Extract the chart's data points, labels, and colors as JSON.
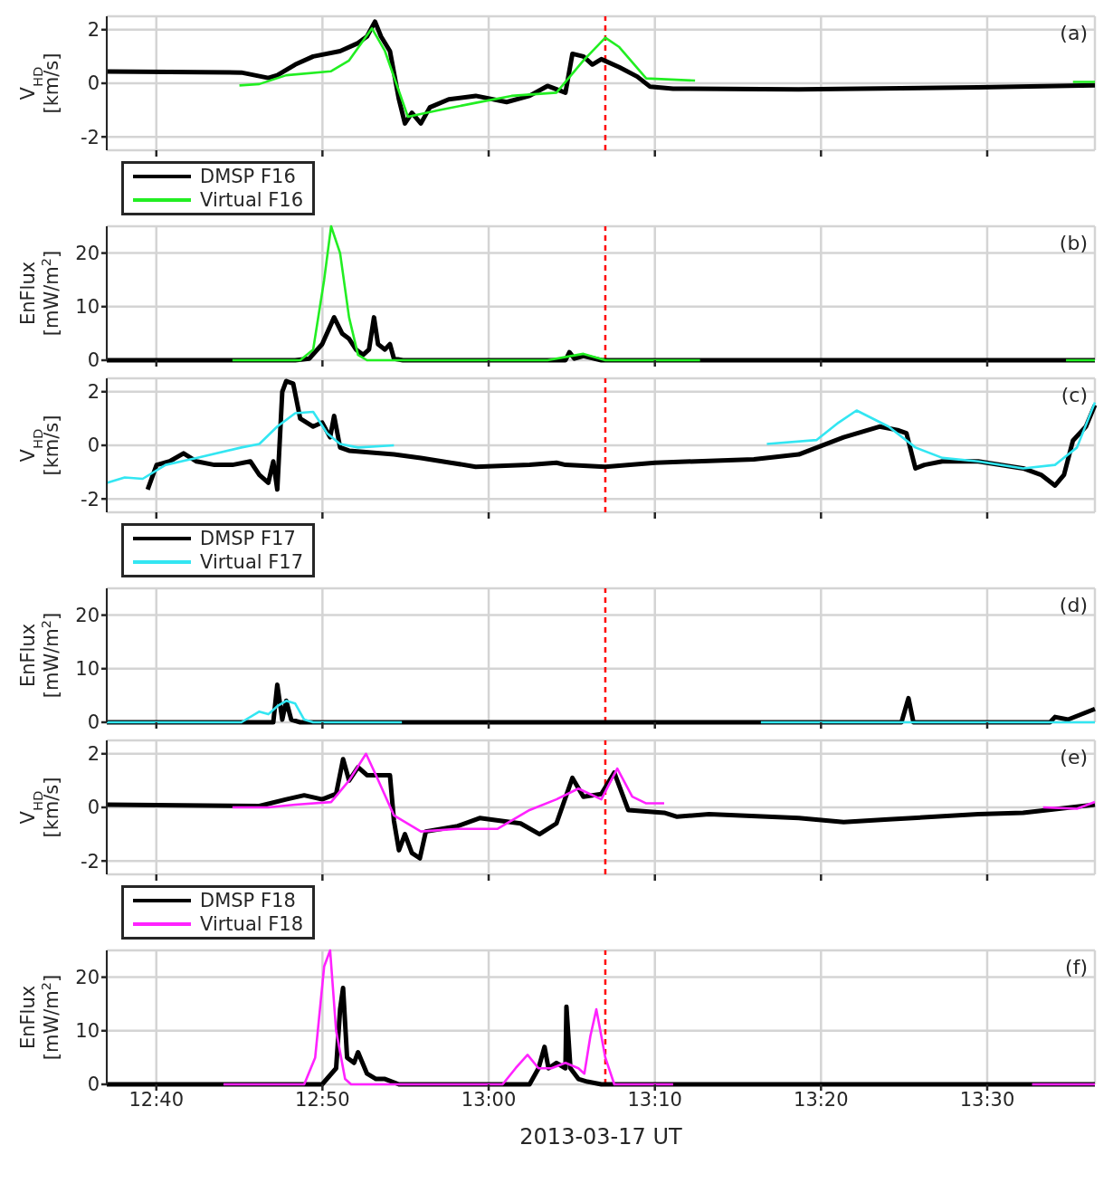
{
  "chart_data": [
    {
      "type": "line",
      "ylabel": "V$_{HD}$ [km/s]",
      "xlim": [
        12.617,
        13.608
      ],
      "xticks": [
        {
          "value": 12.6667,
          "label": null
        },
        {
          "value": 12.8333,
          "label": null
        },
        {
          "value": 13,
          "label": null
        },
        {
          "value": 13.1667,
          "label": null
        },
        {
          "value": 13.3333,
          "label": null
        },
        {
          "value": 13.5,
          "label": null
        }
      ],
      "ylim": [
        -2.5,
        2.5
      ],
      "yticks": [
        -2,
        0,
        2
      ],
      "grid": true,
      "legend": "bottom left",
      "tick_labels": "y",
      "annotations": [
        "(a)"
      ],
      "ref_lines": [
        {
          "axis": "x",
          "value": 13.117,
          "color": "#ff0000",
          "line_style": "dashed"
        }
      ],
      "series": [
        {
          "name": "DMSP F16",
          "color": "#000000",
          "x": [
            12.617,
            12.752,
            12.779,
            12.788,
            12.806,
            12.824,
            12.851,
            12.869,
            12.878,
            12.886,
            12.892,
            12.901,
            12.91,
            12.916,
            12.923,
            12.932,
            12.941,
            12.96,
            12.987,
            13.018,
            13.041,
            13.059,
            13.077,
            13.084,
            13.095,
            13.104,
            13.113,
            13.131,
            13.149,
            13.162,
            13.185,
            13.311,
            13.491,
            13.608
          ],
          "values": [
            0.44,
            0.4,
            0.2,
            0.3,
            0.7,
            1.0,
            1.2,
            1.5,
            1.75,
            2.3,
            1.75,
            1.2,
            -0.6,
            -1.5,
            -1.1,
            -1.5,
            -0.9,
            -0.6,
            -0.47,
            -0.7,
            -0.47,
            -0.1,
            -0.35,
            1.1,
            1.0,
            0.7,
            0.9,
            0.6,
            0.25,
            -0.13,
            -0.2,
            -0.23,
            -0.15,
            -0.08
          ]
        },
        {
          "name": "Virtual F16",
          "color": "#22ee22",
          "x": [
            12.75,
            12.77,
            12.797,
            12.842,
            12.86,
            12.883,
            12.896,
            12.919,
            12.951,
            12.987,
            13.023,
            13.068,
            13.095,
            13.117,
            13.131,
            13.158,
            13.207,
            13.4,
            13.586,
            13.608
          ],
          "values": [
            -0.08,
            -0.03,
            0.3,
            0.45,
            0.85,
            2.05,
            1.2,
            -1.25,
            -1.0,
            -0.73,
            -0.47,
            -0.35,
            0.85,
            1.7,
            1.35,
            0.18,
            0.1,
            null,
            0.05,
            0.05
          ]
        }
      ]
    },
    {
      "type": "line",
      "ylabel": "EnFlux [mW/m$^{2}$]",
      "xlim": [
        12.617,
        13.608
      ],
      "xticks": [
        {
          "value": 12.6667,
          "label": null
        },
        {
          "value": 12.8333,
          "label": null
        },
        {
          "value": 13,
          "label": null
        },
        {
          "value": 13.1667,
          "label": null
        },
        {
          "value": 13.3333,
          "label": null
        },
        {
          "value": 13.5,
          "label": null
        }
      ],
      "ylim": [
        0,
        25
      ],
      "yticks": [
        0,
        10,
        20
      ],
      "grid": true,
      "tick_labels": "y",
      "annotations": [
        "(b)"
      ],
      "ref_lines": [
        {
          "axis": "x",
          "value": 13.117,
          "color": "#ff0000",
          "line_style": "dashed"
        }
      ],
      "series": [
        {
          "color": "#000000",
          "x": [
            12.617,
            12.806,
            12.82,
            12.833,
            12.845,
            12.853,
            12.86,
            12.867,
            12.874,
            12.88,
            12.885,
            12.889,
            12.896,
            12.901,
            12.905,
            12.914,
            13.077,
            13.081,
            13.086,
            13.095,
            13.113,
            13.608
          ],
          "values": [
            0,
            0,
            0.3,
            3,
            8,
            5,
            4,
            2,
            1,
            2,
            8,
            3,
            2,
            3,
            0.3,
            0,
            0,
            1.5,
            0.3,
            0.8,
            0,
            0
          ]
        },
        {
          "color": "#22ee22",
          "x": [
            12.743,
            12.811,
            12.824,
            12.835,
            12.842,
            12.851,
            12.86,
            12.869,
            12.878,
            13.059,
            13.095,
            13.117,
            13.212,
            13.4,
            13.579,
            13.608
          ],
          "values": [
            0,
            0,
            2,
            15,
            25,
            20,
            8,
            1,
            0,
            0,
            1.2,
            0,
            0,
            null,
            0,
            0
          ]
        }
      ]
    },
    {
      "type": "line",
      "ylabel": "V$_{HD}$ [km/s]",
      "xlim": [
        12.617,
        13.608
      ],
      "xticks": [
        {
          "value": 12.6667,
          "label": null
        },
        {
          "value": 12.8333,
          "label": null
        },
        {
          "value": 13,
          "label": null
        },
        {
          "value": 13.1667,
          "label": null
        },
        {
          "value": 13.3333,
          "label": null
        },
        {
          "value": 13.5,
          "label": null
        }
      ],
      "ylim": [
        -2.5,
        2.5
      ],
      "yticks": [
        -2,
        0,
        2
      ],
      "grid": true,
      "legend": "bottom left",
      "tick_labels": "y",
      "annotations": [
        "(c)"
      ],
      "ref_lines": [
        {
          "axis": "x",
          "value": 13.117,
          "color": "#ff0000",
          "line_style": "dashed"
        }
      ],
      "series": [
        {
          "name": "DMSP F17",
          "color": "#000000",
          "x": [
            12.658,
            12.667,
            12.68,
            12.694,
            12.707,
            12.725,
            12.743,
            12.761,
            12.77,
            12.779,
            12.784,
            12.788,
            12.793,
            12.797,
            12.804,
            12.811,
            12.824,
            12.833,
            12.841,
            12.845,
            12.851,
            12.86,
            12.905,
            12.932,
            12.987,
            13.041,
            13.068,
            13.077,
            13.117,
            13.167,
            13.266,
            13.311,
            13.356,
            13.392,
            13.41,
            13.419,
            13.428,
            13.437,
            13.455,
            13.491,
            13.536,
            13.554,
            13.568,
            13.577,
            13.586,
            13.599,
            13.608
          ],
          "values": [
            -1.65,
            -0.73,
            -0.6,
            -0.3,
            -0.6,
            -0.73,
            -0.73,
            -0.6,
            -1.1,
            -1.4,
            -0.6,
            -1.65,
            2.0,
            2.4,
            2.3,
            1.0,
            0.7,
            0.85,
            0.3,
            1.1,
            -0.08,
            -0.2,
            -0.34,
            -0.47,
            -0.8,
            -0.73,
            -0.65,
            -0.73,
            -0.8,
            -0.65,
            -0.52,
            -0.34,
            0.3,
            0.7,
            0.57,
            0.45,
            -0.86,
            -0.73,
            -0.6,
            -0.6,
            -0.86,
            -1.1,
            -1.5,
            -1.1,
            0.18,
            0.7,
            1.5
          ]
        },
        {
          "name": "Virtual F17",
          "color": "#33e6f2",
          "x": [
            12.617,
            12.635,
            12.653,
            12.676,
            12.707,
            12.752,
            12.77,
            12.788,
            12.806,
            12.824,
            12.838,
            12.851,
            12.869,
            12.905,
            13.1,
            13.279,
            13.329,
            13.351,
            13.369,
            13.401,
            13.428,
            13.455,
            13.491,
            13.536,
            13.568,
            13.59,
            13.608
          ],
          "values": [
            -1.4,
            -1.2,
            -1.25,
            -0.73,
            -0.47,
            -0.08,
            0.05,
            0.7,
            1.2,
            1.25,
            0.45,
            0.05,
            -0.08,
            0,
            null,
            0.05,
            0.2,
            0.85,
            1.3,
            0.7,
            -0.08,
            -0.47,
            -0.6,
            -0.86,
            -0.73,
            -0.08,
            1.6
          ]
        }
      ]
    },
    {
      "type": "line",
      "ylabel": "EnFlux [mW/m$^{2}$]",
      "xlim": [
        12.617,
        13.608
      ],
      "xticks": [
        {
          "value": 12.6667,
          "label": null
        },
        {
          "value": 12.8333,
          "label": null
        },
        {
          "value": 13,
          "label": null
        },
        {
          "value": 13.1667,
          "label": null
        },
        {
          "value": 13.3333,
          "label": null
        },
        {
          "value": 13.5,
          "label": null
        }
      ],
      "ylim": [
        0,
        25
      ],
      "yticks": [
        0,
        10,
        20
      ],
      "grid": true,
      "tick_labels": "y",
      "annotations": [
        "(d)"
      ],
      "ref_lines": [
        {
          "axis": "x",
          "value": 13.117,
          "color": "#ff0000",
          "line_style": "dashed"
        }
      ],
      "series": [
        {
          "color": "#000000",
          "x": [
            12.617,
            12.784,
            12.788,
            12.793,
            12.797,
            12.802,
            12.811,
            13.414,
            13.421,
            13.426,
            13.563,
            13.568,
            13.581,
            13.608
          ],
          "values": [
            0,
            0,
            7,
            0.5,
            4,
            0.5,
            0,
            0,
            4.5,
            0,
            0,
            1,
            0.5,
            2.5
          ]
        },
        {
          "color": "#33e6f2",
          "x": [
            12.617,
            12.752,
            12.77,
            12.779,
            12.788,
            12.797,
            12.806,
            12.815,
            12.824,
            12.913,
            13.1,
            13.273,
            13.608
          ],
          "values": [
            0,
            0,
            2,
            1.5,
            3,
            4,
            3.5,
            0.5,
            0,
            0,
            null,
            0,
            0
          ]
        }
      ]
    },
    {
      "type": "line",
      "ylabel": "V$_{HD}$ [km/s]",
      "xlim": [
        12.617,
        13.608
      ],
      "xticks": [
        {
          "value": 12.6667,
          "label": null
        },
        {
          "value": 12.8333,
          "label": null
        },
        {
          "value": 13,
          "label": null
        },
        {
          "value": 13.1667,
          "label": null
        },
        {
          "value": 13.3333,
          "label": null
        },
        {
          "value": 13.5,
          "label": null
        }
      ],
      "ylim": [
        -2.5,
        2.5
      ],
      "yticks": [
        -2,
        0,
        2
      ],
      "grid": true,
      "legend": "bottom left",
      "tick_labels": "y",
      "annotations": [
        "(e)"
      ],
      "ref_lines": [
        {
          "axis": "x",
          "value": 13.117,
          "color": "#ff0000",
          "line_style": "dashed"
        }
      ],
      "series": [
        {
          "name": "DMSP F18",
          "color": "#000000",
          "x": [
            12.617,
            12.77,
            12.797,
            12.815,
            12.833,
            12.847,
            12.854,
            12.86,
            12.869,
            12.878,
            12.901,
            12.905,
            12.91,
            12.916,
            12.923,
            12.931,
            12.937,
            12.969,
            12.991,
            13.032,
            13.051,
            13.068,
            13.084,
            13.095,
            13.113,
            13.126,
            13.14,
            13.176,
            13.189,
            13.221,
            13.311,
            13.356,
            13.401,
            13.491,
            13.536,
            13.608
          ],
          "values": [
            0.1,
            0.05,
            0.3,
            0.45,
            0.3,
            0.5,
            1.8,
            1.0,
            1.5,
            1.2,
            1.2,
            -0.5,
            -1.6,
            -1.0,
            -1.7,
            -1.9,
            -0.9,
            -0.7,
            -0.4,
            -0.6,
            -1.0,
            -0.6,
            1.1,
            0.4,
            0.5,
            1.3,
            -0.1,
            -0.2,
            -0.35,
            -0.25,
            -0.4,
            -0.55,
            -0.45,
            -0.25,
            -0.2,
            0.1
          ]
        },
        {
          "name": "Virtual F18",
          "color": "#ff22ff",
          "x": [
            12.743,
            12.779,
            12.806,
            12.842,
            12.86,
            12.877,
            12.887,
            12.905,
            12.932,
            12.969,
            13.009,
            13.041,
            13.068,
            13.09,
            13.113,
            13.129,
            13.144,
            13.158,
            13.176,
            13.35,
            13.556,
            13.59,
            13.608
          ],
          "values": [
            0,
            0,
            0.1,
            0.2,
            1.0,
            2.0,
            1.2,
            -0.3,
            -0.9,
            -0.8,
            -0.8,
            -0.1,
            0.3,
            0.7,
            0.3,
            1.45,
            0.4,
            0.15,
            0.15,
            null,
            0,
            -0.05,
            0.2
          ]
        }
      ]
    },
    {
      "type": "line",
      "ylabel": "EnFlux [mW/m$^{2}$]",
      "xlabel": "2013-03-17 UT",
      "xlim": [
        12.617,
        13.608
      ],
      "xticks": [
        {
          "value": 12.6667,
          "label": "12:40"
        },
        {
          "value": 12.8333,
          "label": "12:50"
        },
        {
          "value": 13,
          "label": "13:00"
        },
        {
          "value": 13.1667,
          "label": "13:10"
        },
        {
          "value": 13.3333,
          "label": "13:20"
        },
        {
          "value": 13.5,
          "label": "13:30"
        }
      ],
      "ylim": [
        0,
        25
      ],
      "yticks": [
        0,
        10,
        20
      ],
      "grid": true,
      "annotations": [
        "(f)"
      ],
      "ref_lines": [
        {
          "axis": "x",
          "value": 13.117,
          "color": "#ff0000",
          "line_style": "dashed"
        }
      ],
      "series": [
        {
          "color": "#000000",
          "x": [
            12.617,
            12.833,
            12.847,
            12.851,
            12.854,
            12.858,
            12.865,
            12.869,
            12.878,
            12.887,
            12.896,
            12.91,
            13.041,
            13.05,
            13.056,
            13.06,
            13.068,
            13.077,
            13.078,
            13.082,
            13.09,
            13.099,
            13.113,
            13.608
          ],
          "values": [
            0,
            0,
            3,
            14,
            18,
            5,
            4,
            6,
            2,
            1,
            1,
            0,
            0,
            3,
            7,
            3,
            4,
            3,
            14.5,
            3,
            1,
            0.5,
            0,
            0
          ]
        },
        {
          "color": "#ff22ff",
          "x": [
            12.734,
            12.815,
            12.826,
            12.835,
            12.841,
            12.847,
            12.856,
            12.862,
            13.014,
            13.027,
            13.039,
            13.05,
            13.063,
            13.077,
            13.09,
            13.096,
            13.102,
            13.108,
            13.117,
            13.126,
            13.185,
            13.35,
            13.545,
            13.608
          ],
          "values": [
            0,
            0,
            5,
            22,
            25,
            10,
            1,
            0,
            0,
            3,
            5.5,
            3,
            3,
            4,
            3,
            2,
            9,
            14,
            5,
            0,
            0,
            null,
            0,
            0
          ]
        }
      ]
    }
  ]
}
